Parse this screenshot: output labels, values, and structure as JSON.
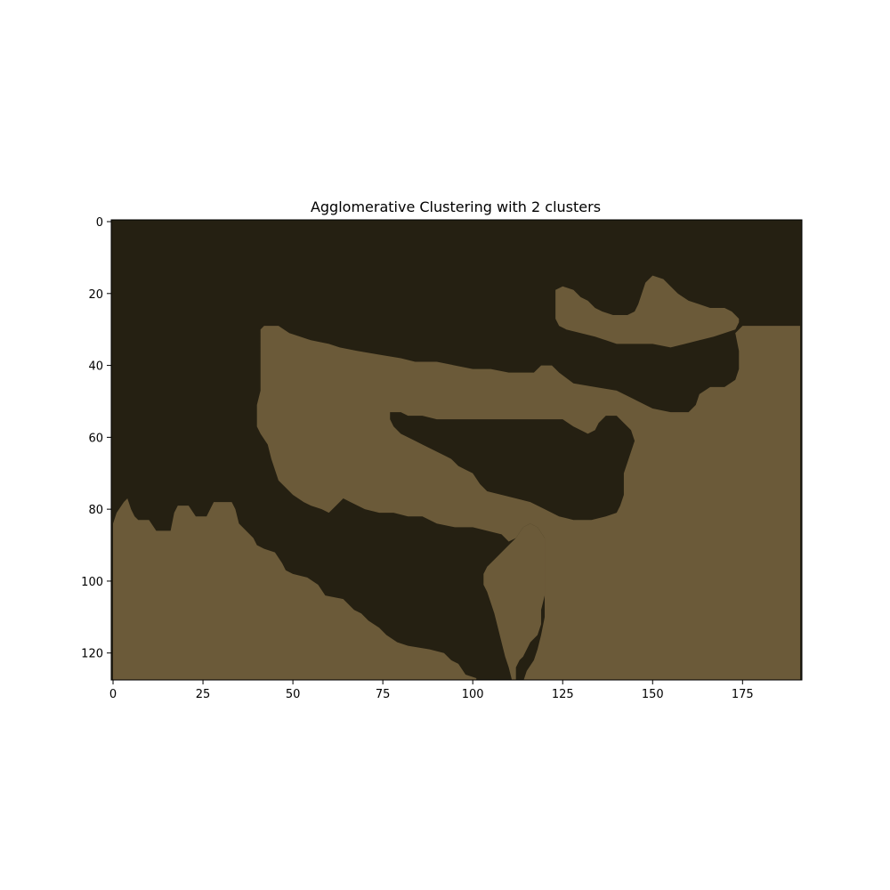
{
  "chart_data": {
    "type": "heatmap",
    "title": "Agglomerative Clustering with 2 clusters",
    "xlabel": "",
    "ylabel": "",
    "image_width": 192,
    "image_height": 128,
    "xlim": [
      -0.5,
      191.5
    ],
    "ylim": [
      127.5,
      -0.5
    ],
    "x_ticks": [
      0,
      25,
      50,
      75,
      100,
      125,
      150,
      175
    ],
    "y_ticks": [
      0,
      20,
      40,
      60,
      80,
      100,
      120
    ],
    "grid": false,
    "legend": "none",
    "clusters": [
      {
        "label": 0,
        "color": "#252012"
      },
      {
        "label": 1,
        "color": "#6b5a39"
      }
    ],
    "regions": [
      {
        "cluster": 1,
        "outline": [
          [
            0,
            84
          ],
          [
            1,
            81
          ],
          [
            3,
            78
          ],
          [
            4,
            77
          ],
          [
            5,
            80
          ],
          [
            6,
            82
          ],
          [
            7,
            83
          ],
          [
            10,
            83
          ],
          [
            12,
            86
          ],
          [
            16,
            86
          ],
          [
            17,
            81
          ],
          [
            18,
            79
          ],
          [
            21,
            79
          ],
          [
            23,
            82
          ],
          [
            26,
            82
          ],
          [
            27,
            80
          ],
          [
            28,
            78
          ],
          [
            33,
            78
          ],
          [
            34,
            80
          ],
          [
            35,
            84
          ],
          [
            37,
            86
          ],
          [
            39,
            88
          ],
          [
            40,
            90
          ],
          [
            42,
            91
          ],
          [
            45,
            92
          ],
          [
            47,
            95
          ],
          [
            48,
            97
          ],
          [
            50,
            98
          ],
          [
            54,
            99
          ],
          [
            57,
            101
          ],
          [
            59,
            104
          ],
          [
            64,
            105
          ],
          [
            67,
            108
          ],
          [
            69,
            109
          ],
          [
            71,
            111
          ],
          [
            74,
            113
          ],
          [
            76,
            115
          ],
          [
            79,
            117
          ],
          [
            82,
            118
          ],
          [
            88,
            119
          ],
          [
            92,
            120
          ],
          [
            94,
            122
          ],
          [
            96,
            123
          ],
          [
            98,
            126
          ],
          [
            101,
            127
          ],
          [
            101,
            128
          ],
          [
            0,
            128
          ]
        ]
      },
      {
        "cluster": 1,
        "outline": [
          [
            112,
            128
          ],
          [
            112,
            124
          ],
          [
            113,
            122
          ],
          [
            114,
            121
          ],
          [
            116,
            117
          ],
          [
            118,
            115
          ],
          [
            119,
            112
          ],
          [
            119,
            108
          ],
          [
            120,
            104
          ],
          [
            120,
            99
          ],
          [
            120,
            88
          ],
          [
            118,
            85
          ],
          [
            116,
            84
          ],
          [
            114,
            85
          ],
          [
            112,
            88
          ],
          [
            110,
            90
          ],
          [
            108,
            92
          ],
          [
            106,
            94
          ],
          [
            104,
            96
          ],
          [
            103,
            98
          ],
          [
            103,
            101
          ],
          [
            104,
            103
          ],
          [
            105,
            106
          ],
          [
            106,
            109
          ],
          [
            107,
            113
          ],
          [
            108,
            117
          ],
          [
            109,
            121
          ],
          [
            110,
            124
          ],
          [
            111,
            128
          ]
        ]
      },
      {
        "cluster": 1,
        "outline": [
          [
            191,
            29
          ],
          [
            191,
            128
          ],
          [
            114,
            128
          ],
          [
            115,
            125
          ],
          [
            117,
            122
          ],
          [
            118,
            119
          ],
          [
            119,
            115
          ],
          [
            120,
            110
          ],
          [
            120,
            104
          ],
          [
            120,
            96
          ],
          [
            120,
            88
          ],
          [
            118,
            85
          ],
          [
            116,
            84
          ],
          [
            114,
            85
          ],
          [
            112,
            88
          ],
          [
            110,
            89
          ],
          [
            108,
            87
          ],
          [
            104,
            86
          ],
          [
            100,
            85
          ],
          [
            95,
            85
          ],
          [
            90,
            84
          ],
          [
            86,
            82
          ],
          [
            82,
            82
          ],
          [
            78,
            81
          ],
          [
            74,
            81
          ],
          [
            70,
            80
          ],
          [
            66,
            78
          ],
          [
            64,
            77
          ],
          [
            62,
            79
          ],
          [
            60,
            81
          ],
          [
            58,
            80
          ],
          [
            55,
            79
          ],
          [
            53,
            78
          ],
          [
            50,
            76
          ],
          [
            48,
            74
          ],
          [
            46,
            72
          ],
          [
            45,
            69
          ],
          [
            44,
            66
          ],
          [
            43,
            62
          ],
          [
            41,
            59
          ],
          [
            40,
            57
          ],
          [
            40,
            51
          ],
          [
            41,
            47
          ],
          [
            41,
            40
          ],
          [
            41,
            34
          ],
          [
            41,
            30
          ],
          [
            42,
            29
          ],
          [
            46,
            29
          ],
          [
            49,
            31
          ],
          [
            52,
            32
          ],
          [
            55,
            33
          ],
          [
            60,
            34
          ],
          [
            63,
            35
          ],
          [
            68,
            36
          ],
          [
            74,
            37
          ],
          [
            80,
            38
          ],
          [
            84,
            39
          ],
          [
            90,
            39
          ],
          [
            95,
            40
          ],
          [
            100,
            41
          ],
          [
            105,
            41
          ],
          [
            110,
            42
          ],
          [
            117,
            42
          ],
          [
            119,
            40
          ],
          [
            122,
            40
          ],
          [
            124,
            42
          ],
          [
            128,
            45
          ],
          [
            134,
            46
          ],
          [
            140,
            47
          ],
          [
            144,
            49
          ],
          [
            148,
            51
          ],
          [
            150,
            52
          ],
          [
            155,
            53
          ],
          [
            160,
            53
          ],
          [
            162,
            51
          ],
          [
            163,
            48
          ],
          [
            166,
            46
          ],
          [
            170,
            46
          ],
          [
            173,
            44
          ],
          [
            174,
            41
          ],
          [
            174,
            36
          ],
          [
            173,
            31
          ],
          [
            175,
            29
          ]
        ]
      },
      {
        "cluster": 1,
        "outline": [
          [
            123,
            19
          ],
          [
            125,
            18
          ],
          [
            128,
            19
          ],
          [
            130,
            21
          ],
          [
            132,
            22
          ],
          [
            134,
            24
          ],
          [
            136,
            25
          ],
          [
            139,
            26
          ],
          [
            143,
            26
          ],
          [
            145,
            25
          ],
          [
            146,
            23
          ],
          [
            147,
            20
          ],
          [
            148,
            17
          ],
          [
            150,
            15
          ],
          [
            153,
            16
          ],
          [
            155,
            18
          ],
          [
            157,
            20
          ],
          [
            160,
            22
          ],
          [
            163,
            23
          ],
          [
            166,
            24
          ],
          [
            170,
            24
          ],
          [
            172,
            25
          ],
          [
            173,
            26
          ],
          [
            174,
            27
          ],
          [
            174,
            28
          ],
          [
            173,
            30
          ],
          [
            170,
            31
          ],
          [
            167,
            32
          ],
          [
            163,
            33
          ],
          [
            159,
            34
          ],
          [
            155,
            35
          ],
          [
            150,
            34
          ],
          [
            145,
            34
          ],
          [
            140,
            34
          ],
          [
            137,
            33
          ],
          [
            134,
            32
          ],
          [
            130,
            31
          ],
          [
            126,
            30
          ],
          [
            124,
            29
          ],
          [
            123,
            27
          ],
          [
            123,
            24
          ]
        ]
      },
      {
        "cluster": 0,
        "outline": [
          [
            77,
            53
          ],
          [
            80,
            53
          ],
          [
            82,
            54
          ],
          [
            86,
            54
          ],
          [
            90,
            55
          ],
          [
            95,
            55
          ],
          [
            100,
            55
          ],
          [
            105,
            55
          ],
          [
            110,
            55
          ],
          [
            117,
            55
          ],
          [
            125,
            55
          ],
          [
            128,
            57
          ],
          [
            130,
            58
          ],
          [
            132,
            59
          ],
          [
            134,
            58
          ],
          [
            135,
            56
          ],
          [
            137,
            54
          ],
          [
            140,
            54
          ],
          [
            142,
            56
          ],
          [
            144,
            58
          ],
          [
            145,
            61
          ],
          [
            144,
            64
          ],
          [
            143,
            67
          ],
          [
            142,
            70
          ],
          [
            142,
            73
          ],
          [
            142,
            76
          ],
          [
            141,
            79
          ],
          [
            140,
            81
          ],
          [
            137,
            82
          ],
          [
            133,
            83
          ],
          [
            128,
            83
          ],
          [
            124,
            82
          ],
          [
            120,
            80
          ],
          [
            116,
            78
          ],
          [
            112,
            77
          ],
          [
            108,
            76
          ],
          [
            104,
            75
          ],
          [
            102,
            73
          ],
          [
            100,
            70
          ],
          [
            98,
            69
          ],
          [
            96,
            68
          ],
          [
            94,
            66
          ],
          [
            92,
            65
          ],
          [
            90,
            64
          ],
          [
            88,
            63
          ],
          [
            86,
            62
          ],
          [
            84,
            61
          ],
          [
            82,
            60
          ],
          [
            80,
            59
          ],
          [
            78,
            57
          ],
          [
            77,
            55
          ]
        ]
      }
    ]
  }
}
